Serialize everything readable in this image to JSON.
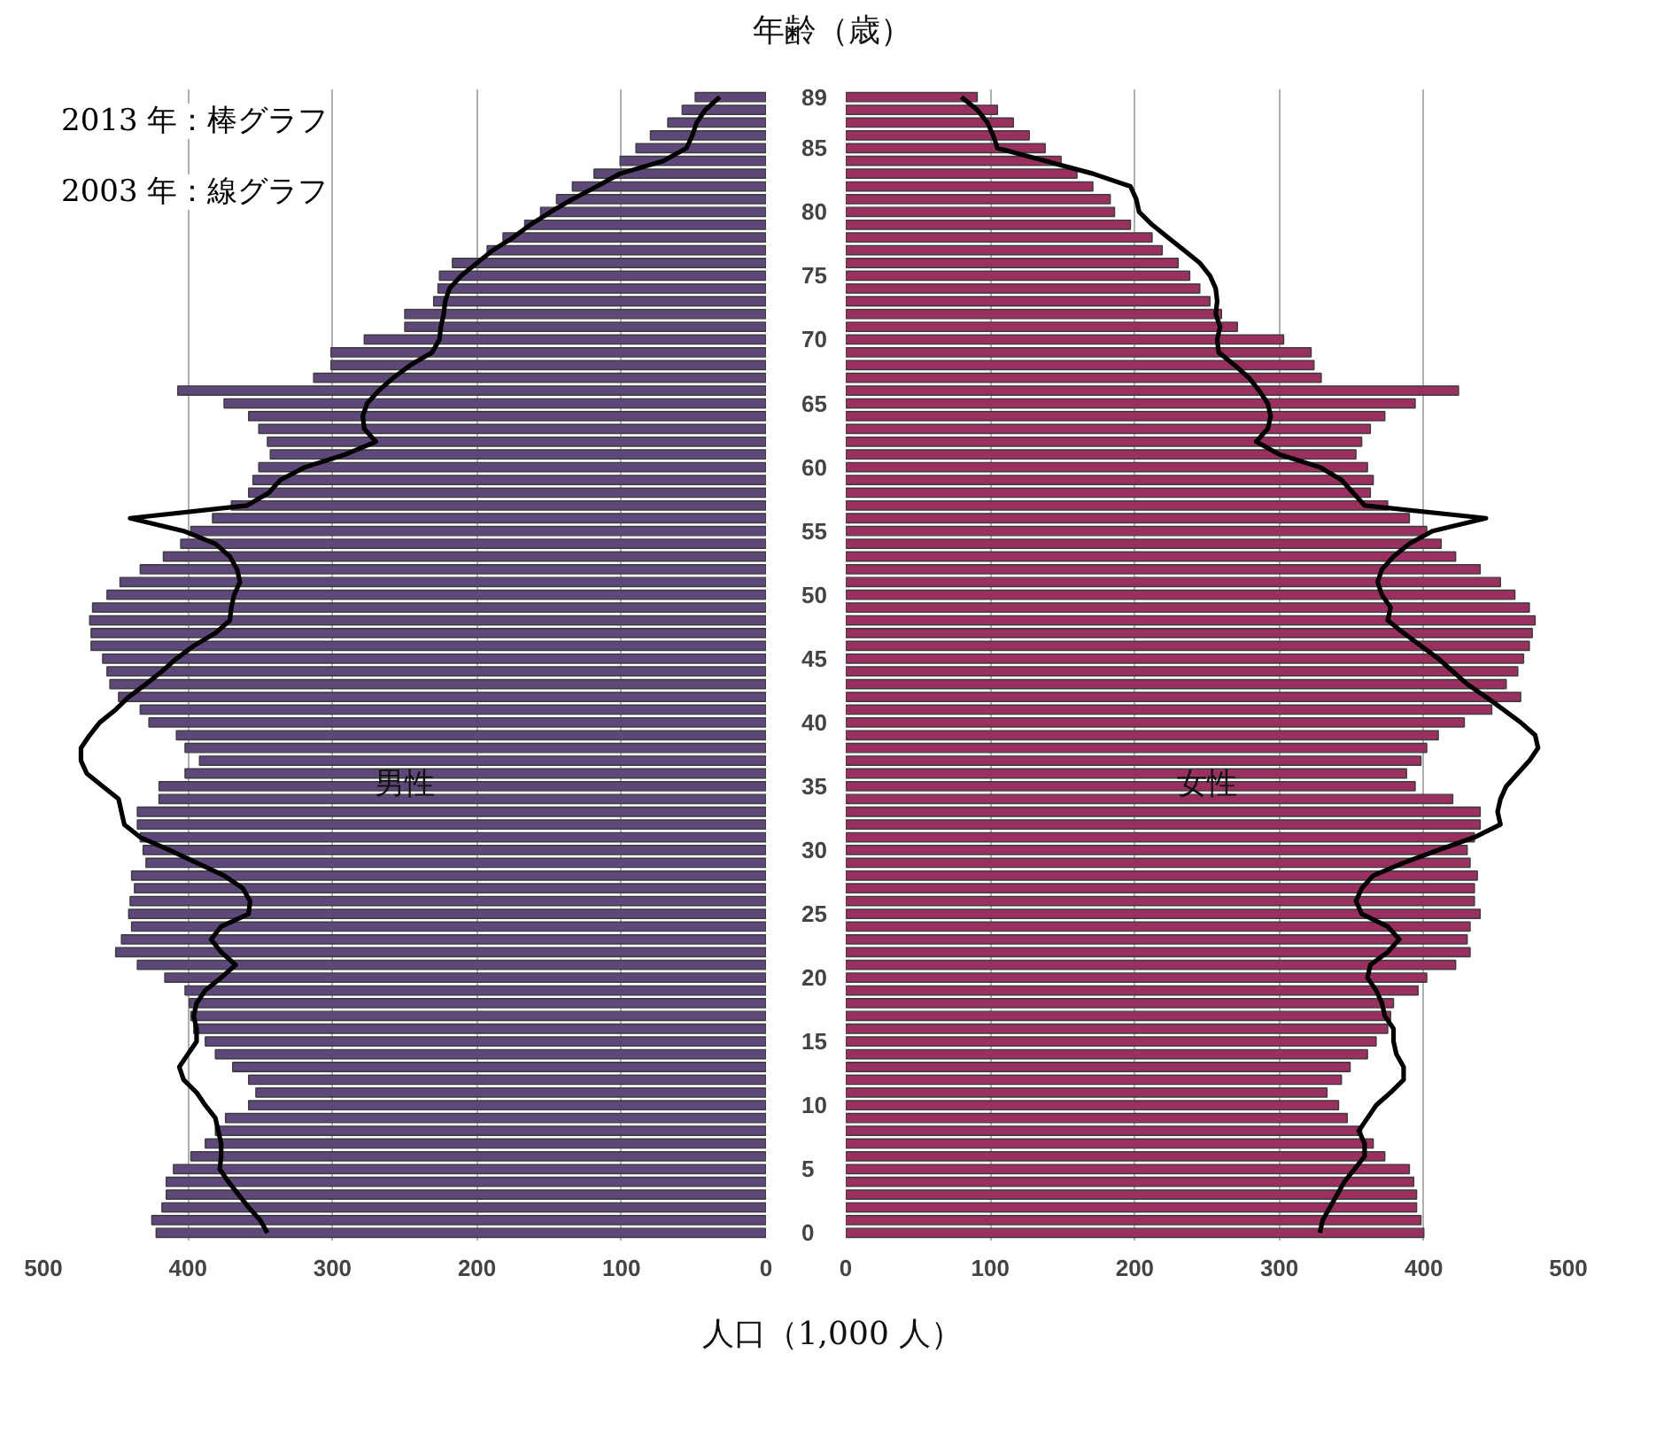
{
  "chart_data": [
    {
      "type": "bar",
      "orientation": "horizontal",
      "title": "男性",
      "ylabel": "年齢（歳）",
      "xlabel": "人口（1,000 人）",
      "annotations": [
        "2013 年：棒グラフ",
        "2003 年：線グラフ"
      ],
      "categories": [
        "89",
        null,
        null,
        null,
        "85",
        null,
        null,
        null,
        null,
        "80",
        null,
        null,
        null,
        null,
        "75",
        null,
        null,
        null,
        null,
        "70",
        null,
        null,
        null,
        null,
        "65",
        null,
        null,
        null,
        null,
        "60",
        null,
        null,
        null,
        null,
        "55",
        null,
        null,
        null,
        null,
        "50",
        null,
        null,
        null,
        null,
        "45",
        null,
        null,
        null,
        null,
        "40",
        null,
        null,
        null,
        null,
        "35",
        null,
        null,
        null,
        null,
        "30",
        null,
        null,
        null,
        null,
        "25",
        null,
        null,
        null,
        null,
        "20",
        null,
        null,
        null,
        null,
        "15",
        null,
        null,
        null,
        null,
        "10",
        null,
        null,
        null,
        null,
        "5",
        null,
        null,
        null,
        null,
        "0"
      ],
      "series": [
        {
          "color": "#5e4779",
          "values": [
            49,
            58,
            68,
            80,
            90,
            101,
            119,
            134,
            145,
            156,
            167,
            182,
            193,
            217,
            226,
            227,
            230,
            250,
            250,
            278,
            301,
            301,
            313,
            407,
            375,
            358,
            351,
            345,
            343,
            351,
            355,
            358,
            370,
            383,
            398,
            405,
            417,
            433,
            447,
            456,
            466,
            468,
            467,
            467,
            459,
            456,
            454,
            448,
            433,
            427,
            408,
            402,
            392,
            402,
            420,
            420,
            435,
            435,
            433,
            431,
            429,
            439,
            437,
            440,
            441,
            439,
            446,
            450,
            435,
            416,
            402,
            399,
            398,
            396,
            388,
            381,
            369,
            358,
            353,
            358,
            374,
            381,
            388,
            398,
            410,
            415,
            415,
            418,
            425,
            422
          ]
        },
        {
          "type": "line",
          "color": "#000000",
          "values": [
            32,
            42,
            48,
            51,
            55,
            71,
            101,
            117,
            134,
            149,
            163,
            175,
            189,
            200,
            211,
            219,
            222,
            223,
            225,
            226,
            231,
            246,
            258,
            268,
            276,
            279,
            278,
            270,
            291,
            319,
            336,
            344,
            359,
            440,
            403,
            381,
            371,
            366,
            364,
            368,
            370,
            371,
            381,
            396,
            408,
            418,
            429,
            441,
            450,
            461,
            468,
            474,
            474,
            470,
            459,
            448,
            446,
            444,
            433,
            413,
            394,
            375,
            362,
            357,
            358,
            377,
            384,
            377,
            367,
            377,
            388,
            394,
            396,
            394,
            394,
            400,
            406,
            403,
            394,
            388,
            381,
            379,
            377,
            377,
            378,
            372,
            365,
            358,
            350,
            345
          ]
        }
      ],
      "xlim": [
        500,
        0
      ],
      "xticks": [
        500,
        400,
        300,
        200,
        100,
        0
      ],
      "grid": "x"
    },
    {
      "type": "bar",
      "orientation": "horizontal",
      "title": "女性",
      "tick_labels": "x",
      "categories": [
        "89",
        null,
        null,
        null,
        "85",
        null,
        null,
        null,
        null,
        "80",
        null,
        null,
        null,
        null,
        "75",
        null,
        null,
        null,
        null,
        "70",
        null,
        null,
        null,
        null,
        "65",
        null,
        null,
        null,
        null,
        "60",
        null,
        null,
        null,
        null,
        "55",
        null,
        null,
        null,
        null,
        "50",
        null,
        null,
        null,
        null,
        "45",
        null,
        null,
        null,
        null,
        "40",
        null,
        null,
        null,
        null,
        "35",
        null,
        null,
        null,
        null,
        "30",
        null,
        null,
        null,
        null,
        "25",
        null,
        null,
        null,
        null,
        "20",
        null,
        null,
        null,
        null,
        "15",
        null,
        null,
        null,
        null,
        "10",
        null,
        null,
        null,
        null,
        "5",
        null,
        null,
        null,
        null,
        "0"
      ],
      "series": [
        {
          "color": "#99305f",
          "values": [
            91,
            105,
            116,
            127,
            138,
            149,
            160,
            171,
            183,
            186,
            197,
            212,
            219,
            230,
            238,
            245,
            252,
            260,
            271,
            303,
            322,
            324,
            329,
            424,
            394,
            373,
            363,
            357,
            353,
            361,
            365,
            363,
            375,
            390,
            402,
            412,
            422,
            439,
            453,
            463,
            473,
            477,
            475,
            473,
            469,
            465,
            457,
            467,
            447,
            428,
            410,
            402,
            398,
            388,
            394,
            420,
            439,
            439,
            435,
            430,
            432,
            437,
            435,
            435,
            439,
            432,
            430,
            432,
            422,
            402,
            396,
            379,
            377,
            375,
            367,
            361,
            349,
            343,
            333,
            341,
            347,
            357,
            365,
            373,
            390,
            393,
            395,
            395,
            398,
            400
          ]
        },
        {
          "type": "line",
          "color": "#000000",
          "values": [
            80,
            91,
            98,
            102,
            105,
            138,
            171,
            197,
            201,
            203,
            212,
            223,
            234,
            245,
            252,
            256,
            257,
            256,
            259,
            257,
            258,
            269,
            279,
            286,
            292,
            294,
            292,
            284,
            300,
            328,
            343,
            351,
            359,
            443,
            406,
            390,
            379,
            371,
            368,
            371,
            377,
            375,
            386,
            398,
            410,
            420,
            430,
            443,
            455,
            467,
            477,
            479,
            473,
            465,
            457,
            453,
            451,
            453,
            435,
            410,
            386,
            365,
            357,
            353,
            357,
            375,
            383,
            375,
            363,
            361,
            367,
            371,
            373,
            379,
            379,
            381,
            386,
            386,
            377,
            367,
            361,
            355,
            359,
            359,
            352,
            345,
            340,
            335,
            330,
            328
          ]
        }
      ],
      "xlim": [
        0,
        500
      ],
      "xticks": [
        0,
        100,
        200,
        300,
        400,
        500
      ],
      "grid": "x"
    }
  ]
}
